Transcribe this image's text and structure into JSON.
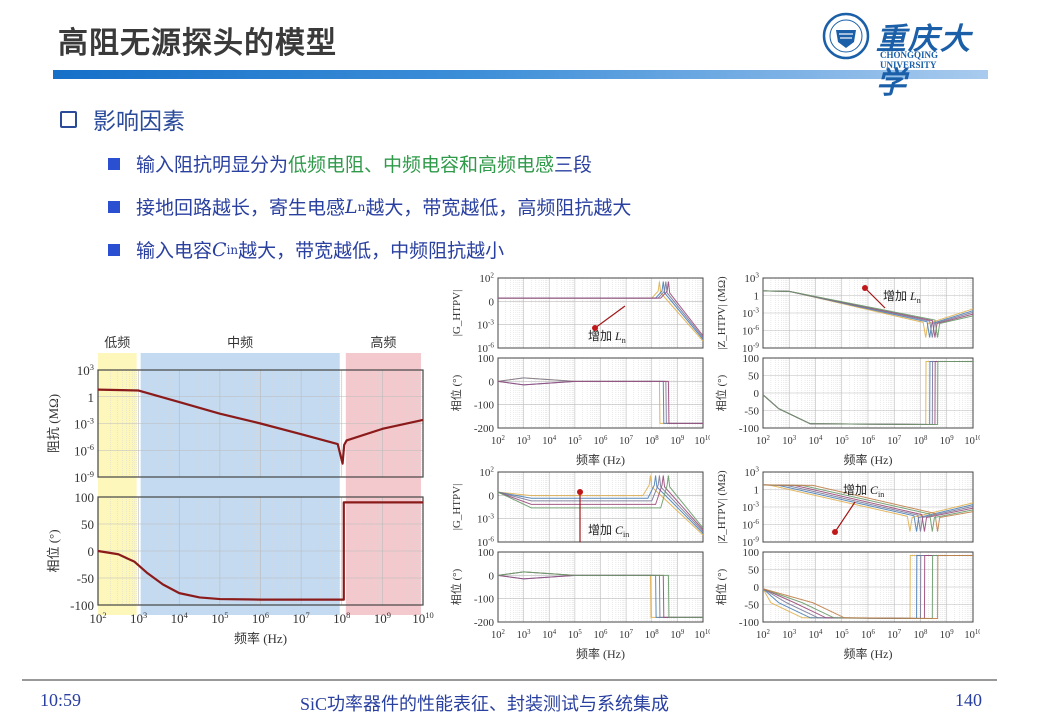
{
  "slide": {
    "title": "高阻无源探头的模型",
    "logo": {
      "cn": "重庆大学",
      "en": "CHONGQING UNIVERSITY"
    },
    "section": "影响因素",
    "bullets": [
      {
        "parts": [
          {
            "t": "输入阻抗明显分为",
            "c": "blue"
          },
          {
            "t": "低频电阻、中频电容和高频电感",
            "c": "green"
          },
          {
            "t": "三段",
            "c": "blue"
          }
        ]
      },
      {
        "pre": "接地回路越长，寄生电感",
        "var": "L",
        "sub": "n",
        "post": "越大，带宽越低，高频阻抗越大"
      },
      {
        "pre": "输入电容",
        "var": "C",
        "sub": "in",
        "post": "越大，带宽越低，中频阻抗越小"
      }
    ],
    "footer": {
      "time": "10:59",
      "center": "SiC功率器件的性能表征、封装测试与系统集成",
      "page": "140"
    },
    "colors": {
      "accent": "#1670c8",
      "bullet_text": "#2a40a0",
      "green_text": "#2f9a4a",
      "curve": "#8b1a1a"
    }
  },
  "chart_data": [
    {
      "id": "main",
      "type": "line",
      "title": "",
      "bands": [
        {
          "label": "低频",
          "from": 2,
          "to": 2.95,
          "color": "#fdf6b0"
        },
        {
          "label": "中频",
          "from": 3.05,
          "to": 7.95,
          "color": "#b9d4ee"
        },
        {
          "label": "高频",
          "from": 8.1,
          "to": 9.95,
          "color": "#f1c0c4"
        }
      ],
      "xlabel": "频率 (Hz)",
      "x_ticks": [
        "10^2",
        "10^3",
        "10^4",
        "10^5",
        "10^6",
        "10^7",
        "10^8",
        "10^9",
        "10^10"
      ],
      "panels": [
        {
          "ylabel": "阻抗 (MΩ)",
          "yscale": "log",
          "ylim": [
            -9,
            3
          ],
          "y_ticks": [
            "10^3",
            "1",
            "10^-3",
            "10^-6",
            "10^-9"
          ],
          "series": [
            {
              "name": "|Z|",
              "color": "#8b1a1a",
              "x": [
                2,
                3,
                4,
                5,
                6,
                7,
                7.9,
                8.02,
                8.06,
                8.12,
                9,
                10
              ],
              "y": [
                0.8,
                0.7,
                -0.6,
                -1.9,
                -3.0,
                -4.2,
                -5.3,
                -7.5,
                -5.4,
                -4.9,
                -3.6,
                -2.6
              ]
            }
          ]
        },
        {
          "ylabel": "相位 (°)",
          "yscale": "linear",
          "ylim": [
            -100,
            100
          ],
          "y_ticks": [
            "100",
            "50",
            "0",
            "-50",
            "-100"
          ],
          "series": [
            {
              "name": "phase",
              "color": "#8b1a1a",
              "x": [
                2,
                2.5,
                2.9,
                3.2,
                3.6,
                4.0,
                4.5,
                5,
                6,
                7,
                8.05,
                8.05,
                10
              ],
              "y": [
                0,
                -6,
                -20,
                -40,
                -62,
                -78,
                -86,
                -89,
                -90,
                -90,
                -90,
                90,
                90
              ]
            }
          ]
        }
      ]
    },
    {
      "id": "G_Ln",
      "type": "line",
      "annotation": "增加 Ln",
      "xlabel": "频率 (Hz)",
      "x_ticks": [
        "10^2",
        "10^3",
        "10^4",
        "10^5",
        "10^6",
        "10^7",
        "10^8",
        "10^9",
        "10^10"
      ],
      "panels": [
        {
          "ylabel": "|G_HTPV|",
          "yscale": "log",
          "ylim": [
            -6,
            2
          ],
          "y_ticks": [
            "10^2",
            "0",
            "10^-3",
            "10^-6"
          ],
          "series_count": 4,
          "resonance_x": [
            8.3,
            8.45,
            8.55,
            8.65
          ],
          "flat_y": -0.3
        },
        {
          "ylabel": "相位 (°)",
          "yscale": "linear",
          "ylim": [
            -200,
            100
          ],
          "y_ticks": [
            "100",
            "0",
            "-100",
            "-200"
          ],
          "series_count": 4,
          "step_x": [
            8.3,
            8.45,
            8.55,
            8.65
          ],
          "before": 0,
          "after": -180
        }
      ]
    },
    {
      "id": "Z_Ln",
      "type": "line",
      "annotation": "增加 Ln",
      "xlabel": "频率 (Hz)",
      "x_ticks": [
        "10^2",
        "10^3",
        "10^4",
        "10^5",
        "10^6",
        "10^7",
        "10^8",
        "10^9",
        "10^10"
      ],
      "panels": [
        {
          "ylabel": "|Z_HTPV| (MΩ)",
          "yscale": "log",
          "ylim": [
            -9,
            3
          ],
          "y_ticks": [
            "10^3",
            "1",
            "10^-3",
            "10^-6",
            "10^-9"
          ],
          "series_count": 5,
          "resonance_x": [
            8.2,
            8.35,
            8.45,
            8.55,
            8.65
          ]
        },
        {
          "ylabel": "相位 (°)",
          "yscale": "linear",
          "ylim": [
            -100,
            100
          ],
          "y_ticks": [
            "100",
            "50",
            "0",
            "-50",
            "-100"
          ],
          "series_count": 5,
          "step_x": [
            8.2,
            8.35,
            8.45,
            8.55,
            8.65
          ],
          "before": -90,
          "after": 90
        }
      ]
    },
    {
      "id": "G_Cin",
      "type": "line",
      "annotation": "增加 Cin",
      "xlabel": "频率 (Hz)",
      "x_ticks": [
        "10^2",
        "10^3",
        "10^4",
        "10^5",
        "10^6",
        "10^7",
        "10^8",
        "10^9",
        "10^10"
      ],
      "panels": [
        {
          "ylabel": "|G_HTPV|",
          "yscale": "log",
          "ylim": [
            -6,
            2
          ],
          "y_ticks": [
            "10^2",
            "0",
            "10^-3",
            "10^-6"
          ],
          "series_count": 5,
          "resonance_x": [
            7.95,
            8.15,
            8.3,
            8.45,
            8.65
          ],
          "flat_y": [
            -0.7,
            -1.0,
            -1.3,
            -1.7,
            -2.1
          ]
        },
        {
          "ylabel": "相位 (°)",
          "yscale": "linear",
          "ylim": [
            -200,
            100
          ],
          "y_ticks": [
            "100",
            "0",
            "-100",
            "-200"
          ],
          "series_count": 5,
          "step_x": [
            7.95,
            8.15,
            8.3,
            8.45,
            8.65
          ],
          "before": 0,
          "after": -180
        }
      ]
    },
    {
      "id": "Z_Cin",
      "type": "line",
      "annotation": "增加 Cin",
      "xlabel": "频率 (Hz)",
      "x_ticks": [
        "10^2",
        "10^3",
        "10^4",
        "10^5",
        "10^6",
        "10^7",
        "10^8",
        "10^9",
        "10^10"
      ],
      "panels": [
        {
          "ylabel": "|Z_HTPV| (MΩ)",
          "yscale": "log",
          "ylim": [
            -9,
            3
          ],
          "y_ticks": [
            "10^3",
            "1",
            "10^-3",
            "10^-6",
            "10^-9"
          ],
          "series_count": 6,
          "resonance_x": [
            7.6,
            7.85,
            8.0,
            8.15,
            8.45,
            8.65
          ],
          "corner_x": [
            2.3,
            2.6,
            2.9,
            3.2,
            3.5,
            3.9
          ]
        },
        {
          "ylabel": "相位 (°)",
          "yscale": "linear",
          "ylim": [
            -100,
            100
          ],
          "y_ticks": [
            "100",
            "50",
            "0",
            "-50",
            "-100"
          ],
          "series_count": 6,
          "step_x": [
            7.6,
            7.85,
            8.0,
            8.15,
            8.45,
            8.65
          ],
          "corner_x": [
            2.3,
            2.6,
            2.9,
            3.2,
            3.5,
            3.9
          ],
          "before": -90,
          "after": 90
        }
      ]
    }
  ],
  "series_palette": [
    "#e0b050",
    "#4a7fb5",
    "#7a7a9a",
    "#9a4a7a",
    "#6a9a6a",
    "#c0804a"
  ]
}
